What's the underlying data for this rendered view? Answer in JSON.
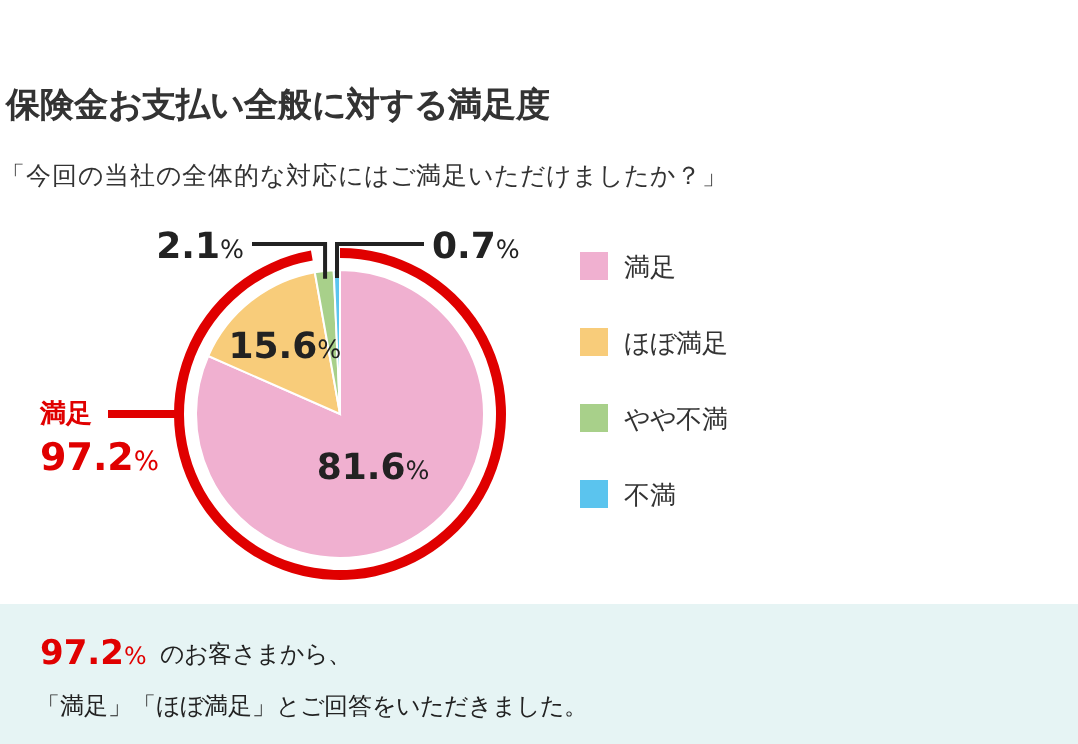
{
  "chart_data": {
    "type": "pie",
    "title": "保険金お支払い全般に対する満足度",
    "subtitle": "「今回の当社の全体的な対応にはご満足いただけましたか？」",
    "categories": [
      "満足",
      "ほぼ満足",
      "やや不満",
      "不満"
    ],
    "values": [
      81.6,
      15.6,
      2.1,
      0.7
    ],
    "colors": [
      "#f0b0d0",
      "#f8cc7a",
      "#a8d08a",
      "#5bc4ee"
    ],
    "value_labels": [
      "81.6%",
      "15.6%",
      "2.1%",
      "0.7%"
    ],
    "legend": "right",
    "annotations": [
      "満足",
      "97.2%",
      "97.2%",
      "のお客さまから、",
      "「満足」「ほぼ満足」とご回答をいただきました。"
    ]
  }
}
